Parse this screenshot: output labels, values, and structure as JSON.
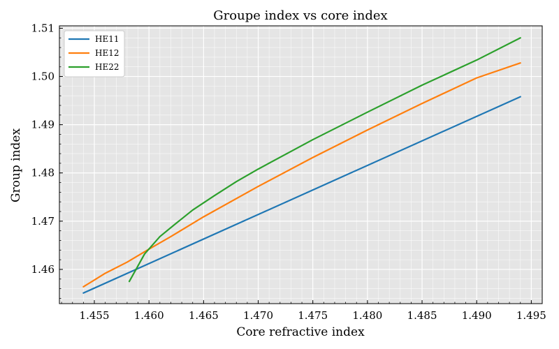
{
  "chart_data": {
    "type": "line",
    "title": "Groupe index vs core index",
    "xlabel": "Core refractive index",
    "ylabel": "Group index",
    "xlim": [
      1.4518,
      1.496
    ],
    "ylim": [
      1.4529,
      1.5105
    ],
    "xticks": [
      1.455,
      1.46,
      1.465,
      1.47,
      1.475,
      1.48,
      1.485,
      1.49,
      1.495
    ],
    "yticks": [
      1.46,
      1.47,
      1.48,
      1.49,
      1.5,
      1.51
    ],
    "xtick_labels": [
      "1.455",
      "1.460",
      "1.465",
      "1.470",
      "1.475",
      "1.480",
      "1.485",
      "1.490",
      "1.495"
    ],
    "ytick_labels": [
      "1.46",
      "1.47",
      "1.48",
      "1.49",
      "1.50",
      "1.51"
    ],
    "grid": true,
    "legend_position": "top-left",
    "series": [
      {
        "name": "HE11",
        "color": "#1f77b4",
        "x": [
          1.454,
          1.494
        ],
        "y": [
          1.4551,
          1.4958
        ]
      },
      {
        "name": "HE12",
        "color": "#ff7f0e",
        "x": [
          1.454,
          1.455,
          1.456,
          1.458,
          1.46,
          1.462,
          1.465,
          1.47,
          1.475,
          1.48,
          1.485,
          1.49,
          1.494
        ],
        "y": [
          1.4564,
          1.4578,
          1.4592,
          1.4615,
          1.4642,
          1.4668,
          1.4709,
          1.4772,
          1.4832,
          1.4889,
          1.4944,
          1.4997,
          1.5028
        ]
      },
      {
        "name": "HE22",
        "color": "#2ca02c",
        "x": [
          1.4582,
          1.4596,
          1.461,
          1.4624,
          1.464,
          1.466,
          1.468,
          1.47,
          1.475,
          1.48,
          1.485,
          1.49,
          1.494
        ],
        "y": [
          1.4575,
          1.4632,
          1.4668,
          1.4694,
          1.4723,
          1.4753,
          1.4782,
          1.4808,
          1.4869,
          1.4926,
          1.4982,
          1.5034,
          1.508
        ]
      }
    ]
  }
}
